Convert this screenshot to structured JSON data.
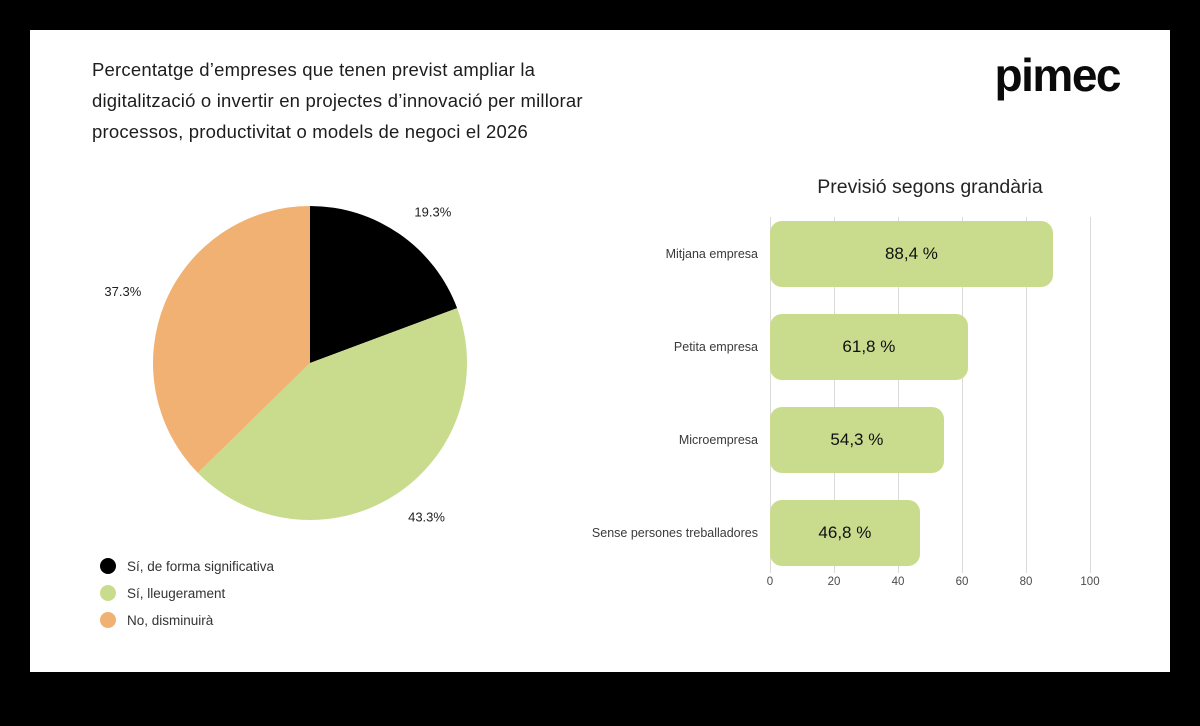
{
  "header": {
    "title_lines": [
      "Percentatge d’empreses que tenen previst ampliar la",
      "digitalització o invertir en projectes d’innovació per millorar",
      "processos, productivitat o models de negoci el 2026"
    ],
    "logo_text": "pimec"
  },
  "colors": {
    "accent_green": "#c9dc8e",
    "accent_orange": "#f0b172",
    "accent_black": "#000000",
    "card_bg": "#ffffff",
    "page_bg": "#000000",
    "gridline": "#dadada"
  },
  "chart_data": [
    {
      "type": "pie",
      "title": "",
      "start_angle": "top",
      "direction": "clockwise",
      "legend_position": "bottom-left",
      "slices": [
        {
          "label": "Sí, de forma significativa",
          "value": 19.3,
          "display": "19.3%",
          "color": "#000000"
        },
        {
          "label": "Sí, lleugerament",
          "value": 43.3,
          "display": "43.3%",
          "color": "#c9dc8e"
        },
        {
          "label": "No, disminuirà",
          "value": 37.3,
          "display": "37.3%",
          "color": "#f0b172"
        }
      ]
    },
    {
      "type": "bar",
      "orientation": "horizontal",
      "title": "Previsió segons grandària",
      "categories": [
        "Mitjana empresa",
        "Petita empresa",
        "Microempresa",
        "Sense persones treballadores"
      ],
      "values": [
        88.4,
        61.8,
        54.3,
        46.8
      ],
      "value_labels": [
        "88,4 %",
        "61,8 %",
        "54,3 %",
        "46,8 %"
      ],
      "xlim": [
        0,
        100
      ],
      "xticks": [
        0,
        20,
        40,
        60,
        80,
        100
      ],
      "bar_color": "#c9dc8e",
      "grid": true,
      "legend_position": "none"
    }
  ]
}
